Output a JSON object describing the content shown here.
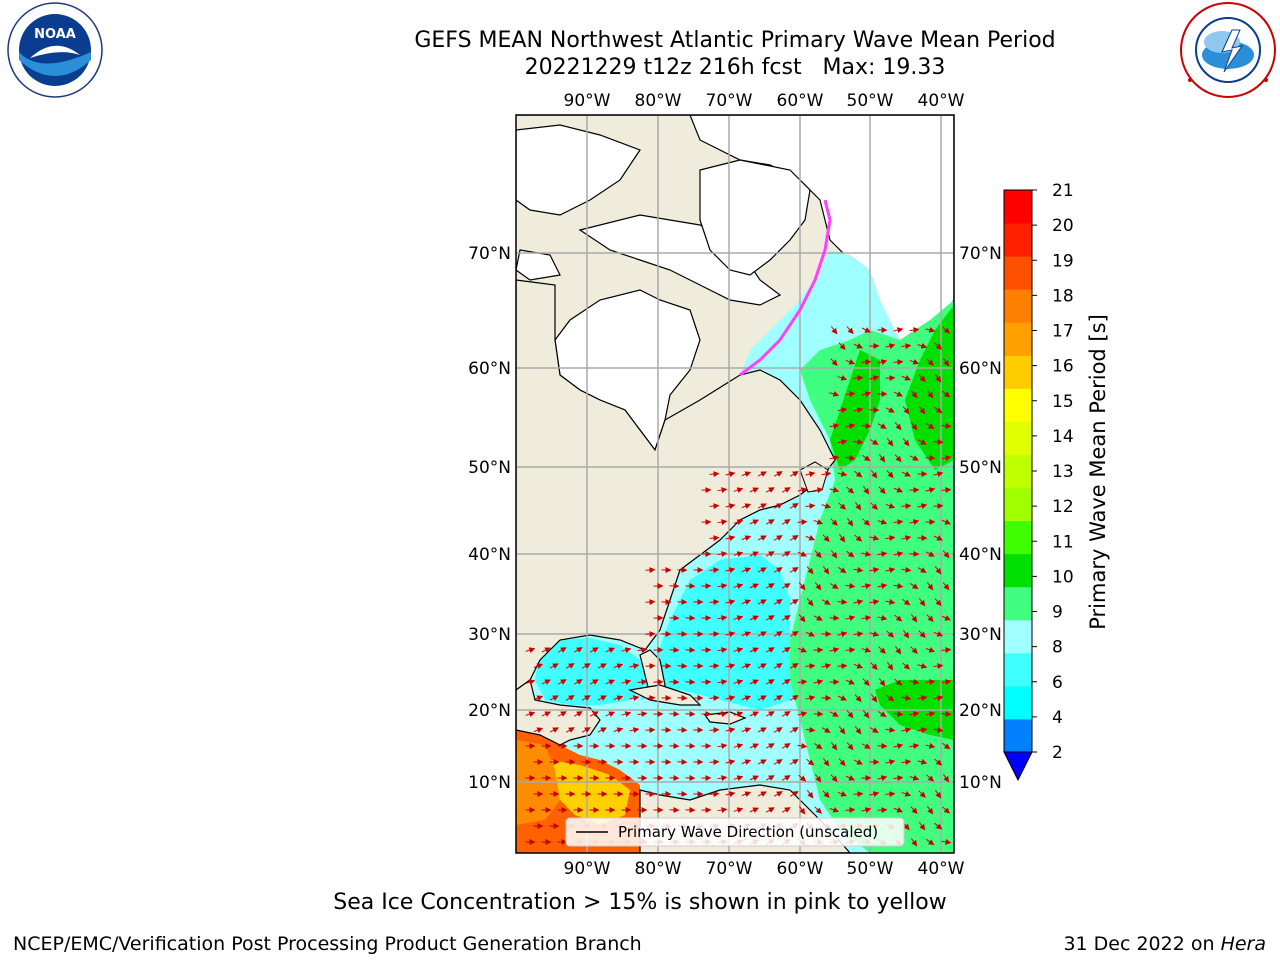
{
  "header": {
    "title": "GEFS MEAN Northwest Atlantic Primary Wave Mean Period",
    "subtitle": "20221229 t12z 216h fcst   Max: 19.33"
  },
  "logos": {
    "left": "NOAA",
    "left_ring_text": "NATIONAL OCEANIC AND ATMOSPHERIC ADMINISTRATION · U.S. DEPARTMENT OF COMMERCE",
    "right_ring_text": "NATIONAL WEATHER SERVICE"
  },
  "map": {
    "lon_labels": [
      "90°W",
      "80°W",
      "70°W",
      "60°W",
      "50°W",
      "40°W"
    ],
    "lat_labels": [
      "70°N",
      "60°N",
      "50°N",
      "40°N",
      "30°N",
      "20°N",
      "10°N"
    ],
    "legend_label": "Primary Wave Direction (unscaled)"
  },
  "colorbar": {
    "label": "Primary Wave Mean Period [s]",
    "ticks": [
      "2",
      "4",
      "6",
      "8",
      "9",
      "10",
      "11",
      "12",
      "13",
      "14",
      "15",
      "16",
      "17",
      "18",
      "19",
      "20",
      "21"
    ],
    "colors": [
      "#0080ff",
      "#00ffff",
      "#40ffff",
      "#a0ffff",
      "#40ff80",
      "#00e000",
      "#40ff00",
      "#a0ff00",
      "#c0ff00",
      "#e0ff00",
      "#ffff00",
      "#ffcc00",
      "#ffa000",
      "#ff8000",
      "#ff5000",
      "#ff2000",
      "#ff0000"
    ],
    "under_color": "#0000ff"
  },
  "footer": {
    "ice_note": "Sea Ice Concentration > 15% is shown in pink to yellow",
    "credit_left": "NCEP/EMC/Verification Post Processing Product Generation Branch",
    "credit_date": "31 Dec 2022 on ",
    "credit_host": "Hera"
  }
}
